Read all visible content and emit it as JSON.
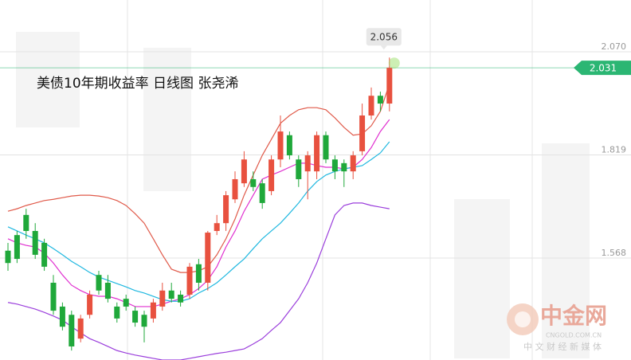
{
  "chart_data": {
    "type": "candlestick",
    "title": "美债10年期收益率  日线图 张尧浠",
    "ylim": [
      1.32,
      2.196
    ],
    "yticks": [
      {
        "value": 2.07,
        "label": "2.070"
      },
      1.819,
      1.568
    ],
    "grid": true,
    "up_color": "#e8513f",
    "down_color": "#1fa83a",
    "candles": [
      [
        1.586,
        1.605,
        1.537,
        1.556
      ],
      [
        1.624,
        1.634,
        1.556,
        1.566
      ],
      [
        1.673,
        1.688,
        1.615,
        1.634
      ],
      [
        1.634,
        1.653,
        1.566,
        1.576
      ],
      [
        1.605,
        1.615,
        1.537,
        1.547
      ],
      [
        1.508,
        1.527,
        1.43,
        1.44
      ],
      [
        1.45,
        1.46,
        1.392,
        1.401
      ],
      [
        1.43,
        1.44,
        1.343,
        1.353
      ],
      [
        1.372,
        1.43,
        1.363,
        1.421
      ],
      [
        1.43,
        1.489,
        1.421,
        1.479
      ],
      [
        1.527,
        1.537,
        1.479,
        1.489
      ],
      [
        1.508,
        1.527,
        1.46,
        1.469
      ],
      [
        1.45,
        1.46,
        1.411,
        1.421
      ],
      [
        1.469,
        1.479,
        1.44,
        1.45
      ],
      [
        1.44,
        1.45,
        1.401,
        1.411
      ],
      [
        1.43,
        1.44,
        1.363,
        1.401
      ],
      [
        1.421,
        1.469,
        1.411,
        1.46
      ],
      [
        1.45,
        1.508,
        1.44,
        1.489
      ],
      [
        1.489,
        1.508,
        1.46,
        1.469
      ],
      [
        1.479,
        1.489,
        1.45,
        1.46
      ],
      [
        1.479,
        1.556,
        1.469,
        1.547
      ],
      [
        1.553,
        1.566,
        1.489,
        1.508
      ],
      [
        1.508,
        1.634,
        1.489,
        1.63
      ],
      [
        1.634,
        1.673,
        1.624,
        1.653
      ],
      [
        1.653,
        1.731,
        1.634,
        1.721
      ],
      [
        1.711,
        1.779,
        1.702,
        1.76
      ],
      [
        1.75,
        1.828,
        1.741,
        1.808
      ],
      [
        1.76,
        1.779,
        1.731,
        1.741
      ],
      [
        1.75,
        1.76,
        1.688,
        1.702
      ],
      [
        1.731,
        1.818,
        1.721,
        1.808
      ],
      [
        1.808,
        1.915,
        1.789,
        1.876
      ],
      [
        1.867,
        1.876,
        1.808,
        1.818
      ],
      [
        1.808,
        1.818,
        1.741,
        1.76
      ],
      [
        1.779,
        1.828,
        1.711,
        1.818
      ],
      [
        1.779,
        1.876,
        1.76,
        1.867
      ],
      [
        1.867,
        1.876,
        1.799,
        1.808
      ],
      [
        1.808,
        1.818,
        1.76,
        1.779
      ],
      [
        1.799,
        1.808,
        1.741,
        1.779
      ],
      [
        1.779,
        1.828,
        1.76,
        1.818
      ],
      [
        1.828,
        1.944,
        1.818,
        1.915
      ],
      [
        1.915,
        1.983,
        1.905,
        1.963
      ],
      [
        1.963,
        1.973,
        1.925,
        1.944
      ],
      [
        1.944,
        2.056,
        1.925,
        2.031
      ]
    ],
    "lines": [
      {
        "color": "#e05a4a",
        "values": [
          1.682,
          1.688,
          1.696,
          1.702,
          1.708,
          1.711,
          1.715,
          1.719,
          1.721,
          1.721,
          1.719,
          1.715,
          1.708,
          1.696,
          1.676,
          1.653,
          1.615,
          1.576,
          1.541,
          1.533,
          1.533,
          1.537,
          1.547,
          1.576,
          1.615,
          1.663,
          1.721,
          1.77,
          1.818,
          1.857,
          1.896,
          1.915,
          1.929,
          1.934,
          1.934,
          1.929,
          1.909,
          1.886,
          1.867,
          1.87,
          1.89,
          1.925,
          1.992
        ]
      },
      {
        "color": "#e030d0",
        "values": [
          1.615,
          1.605,
          1.599,
          1.595,
          1.58,
          1.556,
          1.527,
          1.502,
          1.489,
          1.479,
          1.475,
          1.475,
          1.469,
          1.46,
          1.45,
          1.45,
          1.45,
          1.456,
          1.463,
          1.469,
          1.479,
          1.494,
          1.514,
          1.547,
          1.595,
          1.634,
          1.682,
          1.721,
          1.76,
          1.77,
          1.779,
          1.789,
          1.799,
          1.799,
          1.793,
          1.789,
          1.789,
          1.785,
          1.789,
          1.808,
          1.837,
          1.876,
          1.905
        ]
      },
      {
        "color": "#20b8e0",
        "values": [
          1.644,
          1.634,
          1.624,
          1.615,
          1.605,
          1.591,
          1.576,
          1.56,
          1.547,
          1.533,
          1.522,
          1.514,
          1.506,
          1.498,
          1.489,
          1.483,
          1.475,
          1.467,
          1.463,
          1.463,
          1.469,
          1.483,
          1.494,
          1.508,
          1.527,
          1.547,
          1.566,
          1.591,
          1.615,
          1.634,
          1.653,
          1.677,
          1.702,
          1.731,
          1.754,
          1.77,
          1.779,
          1.785,
          1.789,
          1.793,
          1.808,
          1.824,
          1.851
        ]
      },
      {
        "color": "#9b3fdc",
        "values": [
          1.46,
          1.456,
          1.45,
          1.444,
          1.436,
          1.427,
          1.417,
          1.401,
          1.386,
          1.372,
          1.363,
          1.353,
          1.343,
          1.337,
          1.332,
          1.328,
          1.324,
          1.32,
          1.32,
          1.32,
          1.324,
          1.328,
          1.332,
          1.336,
          1.339,
          1.343,
          1.347,
          1.359,
          1.372,
          1.392,
          1.411,
          1.44,
          1.469,
          1.508,
          1.556,
          1.615,
          1.673,
          1.696,
          1.702,
          1.702,
          1.696,
          1.692,
          1.688
        ]
      }
    ],
    "last_color": "#2bb673",
    "watermark": {
      "brand": "中金网",
      "site": "CNGOLD.COM.CN",
      "slogan": "中 文 财 经 新 媒 体"
    }
  }
}
